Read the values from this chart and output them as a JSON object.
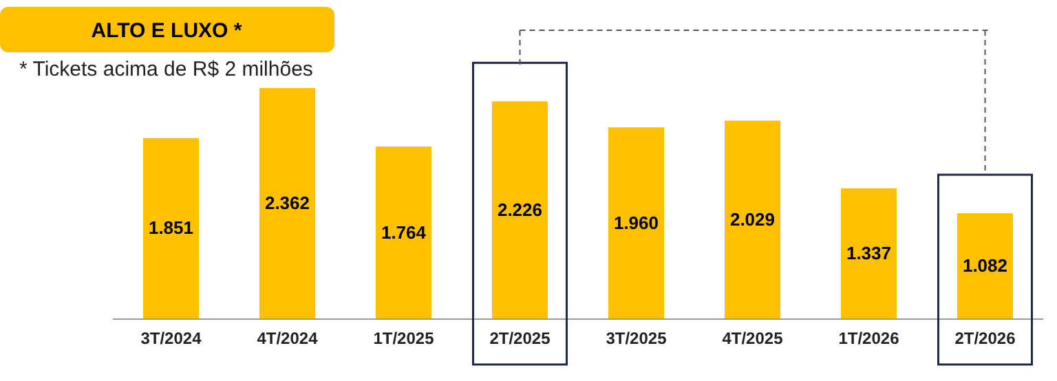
{
  "chart_data": {
    "type": "bar",
    "title": "ALTO E LUXO *",
    "annotations": [
      "* Tickets acima de R$ 2 milhões"
    ],
    "categories": [
      "3T/2024",
      "4T/2024",
      "1T/2025",
      "2T/2025",
      "3T/2025",
      "4T/2025",
      "1T/2026",
      "2T/2026"
    ],
    "values": [
      1851,
      2362,
      1764,
      2226,
      1960,
      2029,
      1337,
      1082
    ],
    "value_labels": [
      "1.851",
      "2.362",
      "1.764",
      "2.226",
      "1.960",
      "2.029",
      "1.337",
      "1.082"
    ],
    "color": "#ffc000"
  }
}
